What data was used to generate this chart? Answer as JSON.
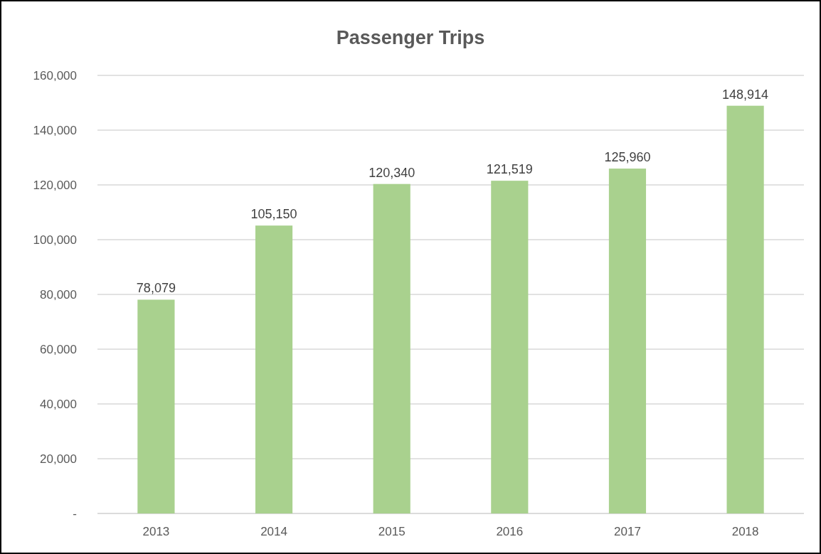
{
  "chart_data": {
    "type": "bar",
    "title": "Passenger Trips",
    "categories": [
      "2013",
      "2014",
      "2015",
      "2016",
      "2017",
      "2018"
    ],
    "values": [
      78079,
      105150,
      120340,
      121519,
      125960,
      148914
    ],
    "color": "#a9d18e",
    "ylim": [
      0,
      160000
    ],
    "yticks": [
      {
        "value": 0,
        "label": "-"
      },
      {
        "value": 20000,
        "label": "20,000"
      },
      {
        "value": 40000,
        "label": "40,000"
      },
      {
        "value": 60000,
        "label": "60,000"
      },
      {
        "value": 80000,
        "label": "80,000"
      },
      {
        "value": 100000,
        "label": "100,000"
      },
      {
        "value": 120000,
        "label": "120,000"
      },
      {
        "value": 140000,
        "label": "140,000"
      },
      {
        "value": 160000,
        "label": "160,000"
      }
    ],
    "grid": "y",
    "value_labels": [
      "78,079",
      "105,150",
      "120,340",
      "121,519",
      "125,960",
      "148,914"
    ]
  }
}
